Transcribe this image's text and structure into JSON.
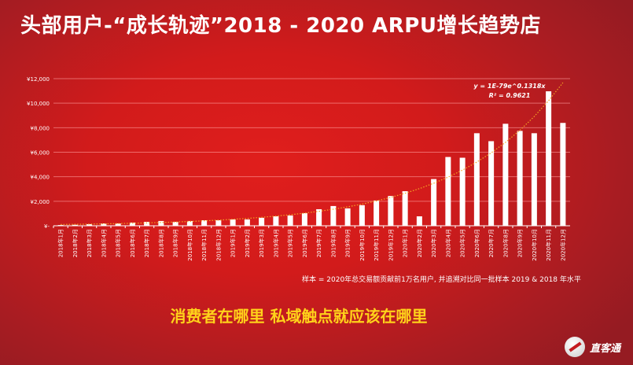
{
  "title": "头部用户-“成长轨迹”2018 - 2020 ARPU增长趋势店",
  "tagline": "消费者在哪里 私域触点就应该在哪里",
  "note": "样本 = 2020年总交易额贡献前1万名用户, 并追溯对比同一批样本 2019 & 2018 年水平",
  "logo": {
    "text": "直客通"
  },
  "colors": {
    "bar": "#ffffff",
    "trendline": "#f5a623",
    "tagline": "#ffd21a"
  },
  "chart_data": {
    "type": "bar",
    "title": "",
    "xlabel": "",
    "ylabel": "",
    "ylim": [
      0,
      12000
    ],
    "grid": true,
    "yticks": [
      0,
      2000,
      4000,
      6000,
      8000,
      10000,
      12000
    ],
    "ytick_labels": [
      "¥-",
      "¥2,000",
      "¥4,000",
      "¥6,000",
      "¥8,000",
      "¥10,000",
      "¥12,000"
    ],
    "categories": [
      "2018年1月",
      "2018年2月",
      "2018年3月",
      "2018年4月",
      "2018年5月",
      "2018年6月",
      "2018年7月",
      "2018年8月",
      "2018年9月",
      "2018年10月",
      "2018年11月",
      "2018年12月",
      "2019年1月",
      "2019年2月",
      "2019年3月",
      "2019年4月",
      "2019年5月",
      "2019年6月",
      "2019年7月",
      "2019年8月",
      "2019年9月",
      "2019年10月",
      "2019年11月",
      "2019年12月",
      "2020年1月",
      "2020年2月",
      "2020年3月",
      "2020年4月",
      "2020年5月",
      "2020年6月",
      "2020年7月",
      "2020年8月",
      "2020年9月",
      "2020年10月",
      "2020年11月",
      "2020年12月"
    ],
    "values": [
      60,
      80,
      130,
      190,
      190,
      260,
      320,
      390,
      320,
      390,
      450,
      450,
      520,
      520,
      650,
      770,
      840,
      1030,
      1350,
      1610,
      1420,
      1680,
      2060,
      2430,
      2820,
      770,
      3810,
      5610,
      5550,
      7550,
      6900,
      8320,
      7740,
      7550,
      10970,
      8390
    ],
    "trendline": {
      "type": "exponential",
      "equation": "y = 1E-79e^0.1318x",
      "r2": "R² = 0.9621"
    }
  }
}
